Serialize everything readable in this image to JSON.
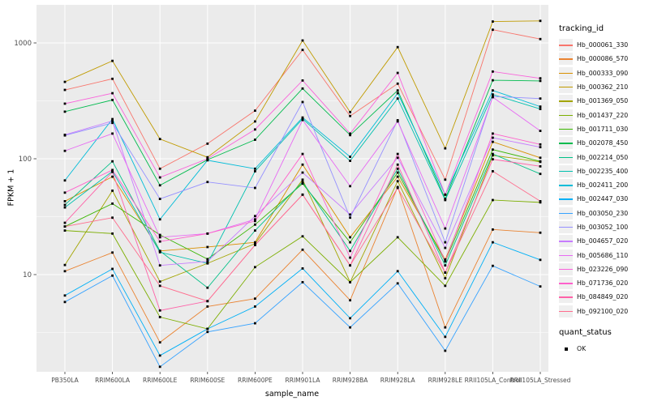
{
  "figure": {
    "y_axis": {
      "title": "FPKM + 1"
    },
    "x_axis": {
      "title": "sample_name"
    },
    "legend": {
      "tracking_title": "tracking_id",
      "quant_title": "quant_status",
      "quant_items": [
        {
          "label": "OK"
        }
      ]
    }
  },
  "chart_data": {
    "type": "line",
    "xlabel": "sample_name",
    "ylabel": "FPKM + 1",
    "y_scale": "log10",
    "ylim": [
      1.5,
      1800
    ],
    "y_ticks": [
      10,
      100,
      1000
    ],
    "y_minor": [
      3.162,
      31.62,
      316.2
    ],
    "grid": "white-on-gray",
    "legend_position": "right",
    "categories": [
      "PB350LA",
      "RRIM600LA",
      "RRIM600LE",
      "RRIM600SE",
      "RRIM600PE",
      "RRIM901LA",
      "RRIM928BA",
      "RRIM928LA",
      "RRIM928LE",
      "RRII105LA_Control",
      "RRII105LA_Stressed"
    ],
    "series": [
      {
        "name": "Hb_000061_330",
        "color": "#F8766D",
        "values": [
          393,
          490,
          82,
          135,
          260,
          870,
          234,
          445,
          66,
          1300,
          1080
        ]
      },
      {
        "name": "Hb_000086_570",
        "color": "#EA8331",
        "values": [
          10.7,
          15.5,
          2.6,
          5.3,
          6.2,
          16.4,
          6.0,
          57,
          3.5,
          24.5,
          23
        ]
      },
      {
        "name": "Hb_000333_090",
        "color": "#D89000",
        "values": [
          43,
          70,
          16,
          17.3,
          19,
          89,
          21,
          70,
          13.5,
          140,
          102
        ]
      },
      {
        "name": "Hb_000362_210",
        "color": "#C09B00",
        "values": [
          461,
          700,
          148,
          103,
          210,
          1050,
          253,
          920,
          123,
          1530,
          1550
        ]
      },
      {
        "name": "Hb_001369_050",
        "color": "#A3A500",
        "values": [
          12.1,
          53,
          8.7,
          12.5,
          18.5,
          66,
          8.6,
          64,
          9.3,
          107,
          94
        ]
      },
      {
        "name": "Hb_001437_220",
        "color": "#7CAE00",
        "values": [
          24,
          22.6,
          4.3,
          3.4,
          11.6,
          21.4,
          8.6,
          21,
          8.0,
          44,
          42
        ]
      },
      {
        "name": "Hb_001711_030",
        "color": "#39B600",
        "values": [
          26,
          41,
          22,
          13.6,
          27,
          61,
          19,
          76,
          13,
          120,
          95
        ]
      },
      {
        "name": "Hb_002078_450",
        "color": "#00BB4E",
        "values": [
          255,
          322,
          59,
          98,
          146,
          404,
          160,
          389,
          45,
          476,
          470
        ]
      },
      {
        "name": "Hb_002214_050",
        "color": "#00C087",
        "values": [
          40,
          95,
          16,
          7.7,
          24,
          63,
          16,
          82,
          12,
          110,
          74
        ]
      },
      {
        "name": "Hb_002235_400",
        "color": "#00C0AF",
        "values": [
          38,
          78,
          15.6,
          12.5,
          78,
          221,
          96,
          331,
          44,
          359,
          269
        ]
      },
      {
        "name": "Hb_002411_200",
        "color": "#00BCD8",
        "values": [
          65,
          220,
          30,
          97,
          82,
          227,
          104,
          368,
          49,
          389,
          282
        ]
      },
      {
        "name": "Hb_002447_030",
        "color": "#00B0F6",
        "values": [
          6.6,
          11.2,
          2.0,
          3.4,
          5.3,
          11.3,
          4.2,
          10.7,
          2.9,
          19,
          13.4
        ]
      },
      {
        "name": "Hb_003050_230",
        "color": "#35A2FF",
        "values": [
          5.8,
          9.8,
          1.6,
          3.2,
          3.8,
          8.6,
          3.5,
          8.4,
          2.2,
          11.9,
          7.9
        ]
      },
      {
        "name": "Hb_003052_100",
        "color": "#9590FF",
        "values": [
          159,
          204,
          45,
          63,
          56,
          309,
          31,
          215,
          19,
          345,
          331
        ]
      },
      {
        "name": "Hb_004657_020",
        "color": "#C77CFF",
        "values": [
          161,
          212,
          12,
          13,
          32,
          76,
          33,
          102,
          17,
          152,
          126
        ]
      },
      {
        "name": "Hb_005686_110",
        "color": "#E76BF3",
        "values": [
          117,
          165,
          21,
          22.6,
          30,
          216,
          58,
          210,
          25,
          340,
          174
        ]
      },
      {
        "name": "Hb_023226_090",
        "color": "#FA62DB",
        "values": [
          299,
          368,
          69,
          100,
          179,
          474,
          165,
          551,
          49,
          566,
          495
        ]
      },
      {
        "name": "Hb_071736_020",
        "color": "#FF61CC",
        "values": [
          51,
          80,
          19.3,
          22.6,
          29,
          110,
          14,
          110,
          13,
          165,
          133
        ]
      },
      {
        "name": "Hb_084849_020",
        "color": "#FF62A8",
        "values": [
          28,
          77,
          4.9,
          5.9,
          18,
          49,
          12,
          89,
          10.4,
          99,
          86
        ]
      },
      {
        "name": "Hb_092100_020",
        "color": "#FF6C8D",
        "values": [
          26,
          31,
          8.0,
          5.9,
          18,
          49,
          12,
          56,
          10.4,
          78,
          43
        ]
      }
    ],
    "point_marker": {
      "label": "OK",
      "color": "#000000"
    }
  },
  "colors": {
    "panel_bg": "#EBEBEB",
    "grid": "#FFFFFF",
    "tick_text": "#4D4D4D",
    "tick_mark": "#333333",
    "legend_key_bg": "#EFEFEF",
    "point": "#000000"
  }
}
